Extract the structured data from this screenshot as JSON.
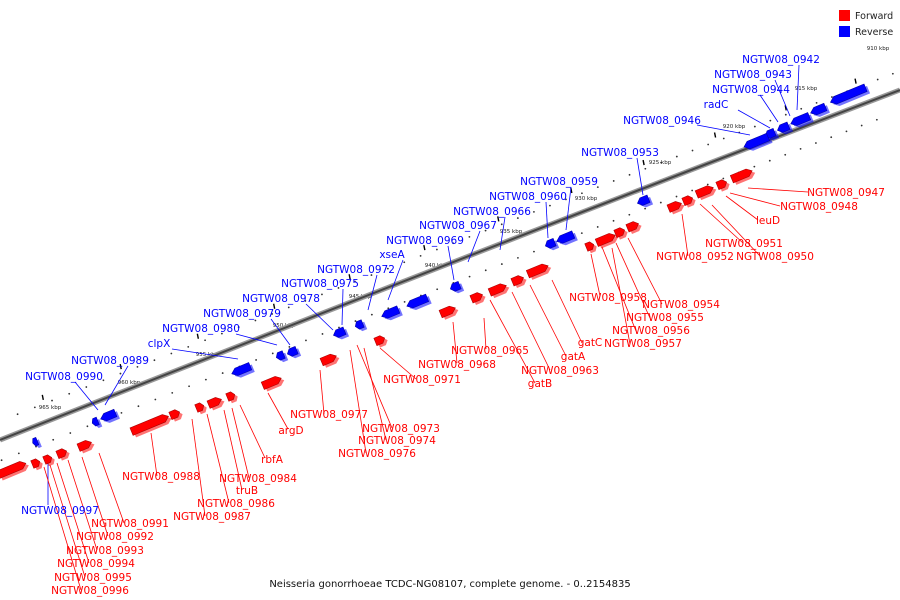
{
  "caption": "Neisseria gonorrhoeae TCDC-NG08107, complete genome. - 0..2154835",
  "legend": [
    {
      "label": "Forward",
      "color": "#ff0000"
    },
    {
      "label": "Reverse",
      "color": "#0000ff"
    }
  ],
  "colors": {
    "forward": "#ff0000",
    "reverse": "#0000ff",
    "backbone": "#666666"
  },
  "ticks": [
    "910 kbp",
    "915 kbp",
    "920 kbp",
    "925 kbp",
    "930 kbp",
    "935 kbp",
    "940 kbp",
    "945 kbp",
    "950 kbp",
    "955 kbp",
    "960 kbp",
    "965 kbp"
  ],
  "reverse_labels": [
    "NGTW08_0942",
    "NGTW08_0943",
    "NGTW08_0944",
    "radC",
    "NGTW08_0946",
    "NGTW08_0953",
    "NGTW08_0959",
    "NGTW08_0960",
    "NGTW08_0966",
    "NGTW08_0967",
    "NGTW08_0969",
    "xseA",
    "NGTW08_0972",
    "NGTW08_0975",
    "NGTW08_0978",
    "NGTW08_0979",
    "NGTW08_0980",
    "clpX",
    "NGTW08_0989",
    "NGTW08_0990",
    "NGTW08_0997"
  ],
  "forward_labels": [
    "NGTW08_0947",
    "NGTW08_0948",
    "leuD",
    "NGTW08_0951",
    "NGTW08_0952",
    "NGTW08_0950",
    "NGTW08_0954",
    "NGTW08_0955",
    "NGTW08_0958",
    "NGTW08_0956",
    "NGTW08_0957",
    "gatC",
    "gatA",
    "NGTW08_0963",
    "gatB",
    "NGTW08_0965",
    "NGTW08_0968",
    "NGTW08_0971",
    "NGTW08_0973",
    "NGTW08_0974",
    "NGTW08_0976",
    "NGTW08_0977",
    "argD",
    "rbfA",
    "NGTW08_0984",
    "truB",
    "NGTW08_0986",
    "NGTW08_0987",
    "NGTW08_0988",
    "NGTW08_0991",
    "NGTW08_0992",
    "NGTW08_0993",
    "NGTW08_0994",
    "NGTW08_0995",
    "NGTW08_0996"
  ]
}
